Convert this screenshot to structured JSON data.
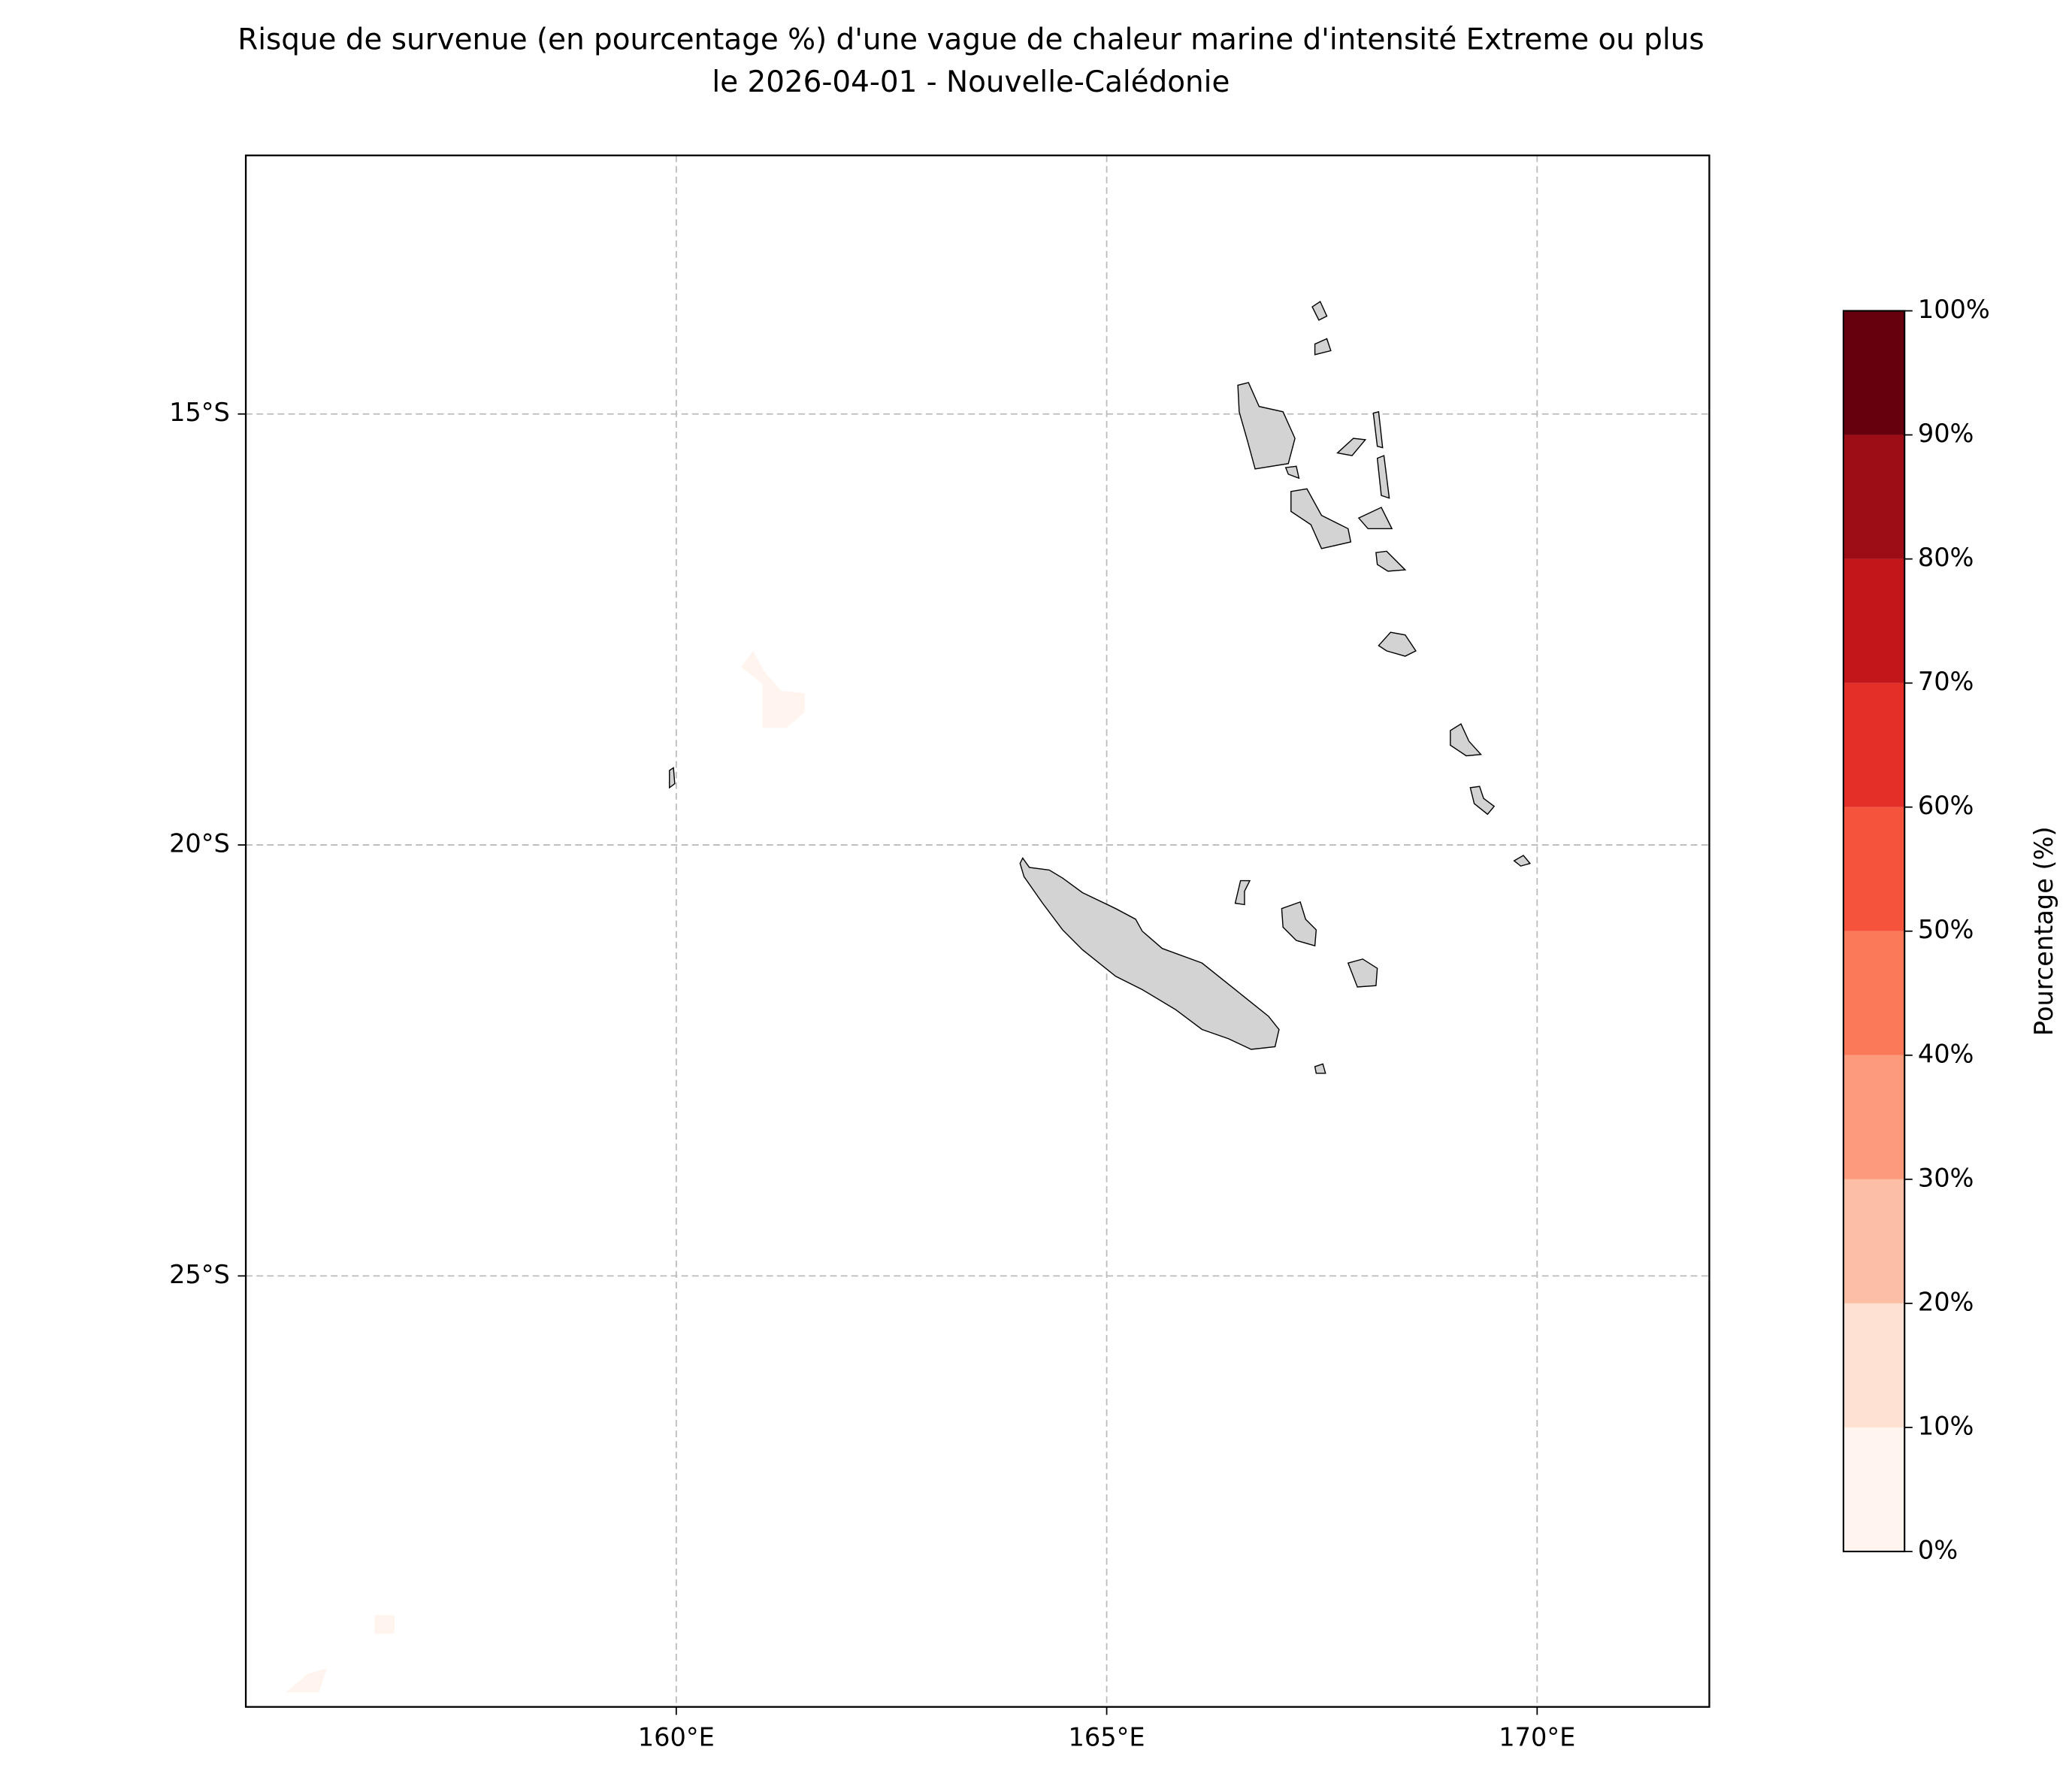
{
  "chart_data": {
    "type": "map",
    "title": "Risque de survenue (en pourcentage %) d'une vague de chaleur marine d'intensité Extreme ou plus",
    "subtitle": "le 2026-04-01 - Nouvelle-Calédonie",
    "xlim": [
      155,
      172
    ],
    "ylim": [
      -30,
      -12
    ],
    "xticks": [
      {
        "value": 160,
        "label": "160°E"
      },
      {
        "value": 165,
        "label": "165°E"
      },
      {
        "value": 170,
        "label": "170°E"
      }
    ],
    "yticks": [
      {
        "value": -15,
        "label": "15°S"
      },
      {
        "value": -20,
        "label": "20°S"
      },
      {
        "value": -25,
        "label": "25°S"
      }
    ],
    "grid": true,
    "colorbar": {
      "label": "Pourcentage (%)",
      "lim": [
        0,
        100
      ],
      "levels": [
        0,
        10,
        20,
        30,
        40,
        50,
        60,
        70,
        80,
        90,
        100
      ],
      "colors": [
        "#fff4ee",
        "#fee1d3",
        "#fcbfa6",
        "#fc9a7b",
        "#fb7858",
        "#f5533b",
        "#e32f27",
        "#c3161b",
        "#9d0d15",
        "#67000d"
      ],
      "ticks": [
        {
          "value": 0,
          "label": "0%"
        },
        {
          "value": 10,
          "label": "10%"
        },
        {
          "value": 20,
          "label": "20%"
        },
        {
          "value": 30,
          "label": "30%"
        },
        {
          "value": 40,
          "label": "40%"
        },
        {
          "value": 50,
          "label": "50%"
        },
        {
          "value": 60,
          "label": "60%"
        },
        {
          "value": 70,
          "label": "70%"
        },
        {
          "value": 80,
          "label": "80%"
        },
        {
          "value": 90,
          "label": "90%"
        },
        {
          "value": 100,
          "label": "100%"
        }
      ]
    }
  }
}
